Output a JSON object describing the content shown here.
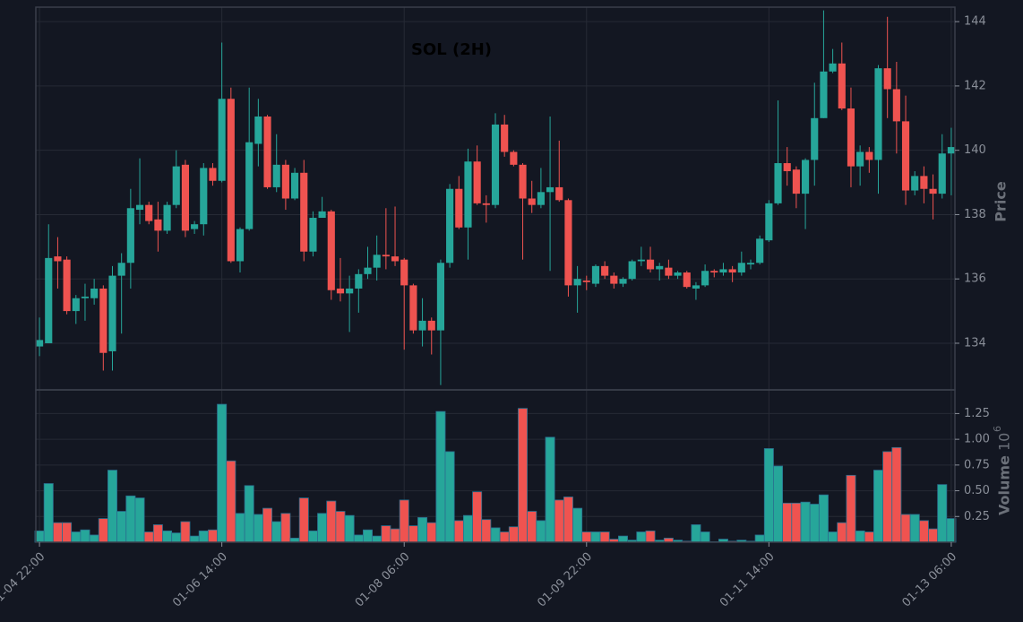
{
  "chart_data": {
    "type": "candlestick",
    "title": "SOL (2H)",
    "ylabel": "Price",
    "volume_label": "Volume",
    "volume_scale": {
      "base": "10",
      "exponent": "6"
    },
    "up_color": "#26a69a",
    "down_color": "#ef5350",
    "grid": true,
    "xlim": [
      -0.4,
      100.4
    ],
    "xticks": [
      {
        "value": 0,
        "label": "01-04 22:00"
      },
      {
        "value": 20,
        "label": "01-06 14:00"
      },
      {
        "value": 40,
        "label": "01-08 06:00"
      },
      {
        "value": 60,
        "label": "01-09 22:00"
      },
      {
        "value": 80,
        "label": "01-11 14:00"
      },
      {
        "value": 100,
        "label": "01-13 06:00"
      }
    ],
    "ylim": [
      132.55,
      144.45
    ],
    "yticks": [
      134,
      136,
      138,
      140,
      142,
      144
    ],
    "volume_ylim": [
      0,
      1.48
    ],
    "volume_yticks": [
      0.25,
      {
        "value": 0.5,
        "label": "0.50"
      },
      0.75,
      {
        "value": 1.0,
        "label": "1.00"
      },
      1.25
    ],
    "open": [
      133.9,
      134.0,
      136.7,
      136.6,
      135.0,
      135.4,
      135.4,
      135.7,
      133.75,
      136.1,
      136.5,
      138.15,
      138.3,
      137.85,
      137.5,
      138.3,
      139.55,
      137.55,
      137.7,
      139.45,
      139.05,
      141.6,
      136.55,
      137.55,
      140.2,
      141.05,
      138.85,
      139.55,
      138.5,
      139.3,
      136.85,
      137.9,
      138.1,
      135.7,
      135.55,
      135.7,
      136.15,
      136.35,
      136.75,
      136.7,
      136.6,
      135.8,
      134.4,
      134.7,
      134.4,
      136.5,
      138.8,
      137.6,
      139.65,
      138.35,
      138.3,
      140.8,
      139.95,
      139.55,
      138.5,
      138.3,
      138.7,
      138.85,
      138.45,
      135.8,
      135.95,
      135.85,
      136.4,
      136.1,
      135.85,
      136.0,
      136.55,
      136.6,
      136.3,
      136.35,
      136.1,
      136.2,
      135.7,
      135.8,
      136.25,
      136.2,
      136.3,
      136.2,
      136.45,
      136.5,
      137.2,
      138.35,
      139.6,
      139.4,
      138.65,
      139.7,
      141.0,
      142.45,
      142.7,
      141.3,
      139.5,
      139.95,
      139.7,
      142.55,
      141.9,
      140.9,
      138.75,
      139.2,
      138.8,
      138.65,
      139.9
    ],
    "close": [
      134.1,
      136.65,
      136.55,
      135.0,
      135.4,
      135.45,
      135.7,
      133.7,
      136.1,
      136.5,
      138.2,
      138.3,
      137.8,
      137.5,
      138.3,
      139.5,
      137.5,
      137.7,
      139.45,
      139.05,
      141.6,
      136.55,
      137.55,
      140.25,
      141.05,
      138.85,
      139.55,
      138.5,
      139.3,
      136.85,
      137.9,
      138.1,
      135.65,
      135.55,
      135.7,
      136.15,
      136.35,
      136.75,
      136.7,
      136.55,
      135.8,
      134.4,
      134.7,
      134.4,
      136.5,
      138.8,
      137.6,
      139.65,
      138.35,
      138.3,
      140.8,
      139.95,
      139.55,
      138.5,
      138.3,
      138.7,
      138.85,
      138.45,
      135.8,
      136.0,
      135.9,
      136.4,
      136.1,
      135.85,
      136.0,
      136.55,
      136.6,
      136.3,
      136.4,
      136.1,
      136.2,
      135.75,
      135.8,
      136.25,
      136.2,
      136.3,
      136.2,
      136.5,
      136.5,
      137.25,
      138.35,
      139.6,
      139.35,
      138.65,
      139.7,
      141.0,
      142.45,
      142.7,
      141.3,
      139.5,
      139.95,
      139.7,
      142.55,
      141.9,
      140.9,
      138.75,
      139.2,
      138.8,
      138.65,
      139.9,
      140.1
    ],
    "high": [
      134.8,
      137.7,
      137.3,
      136.7,
      135.5,
      135.85,
      136.0,
      135.8,
      136.4,
      136.8,
      138.8,
      139.75,
      138.4,
      138.4,
      138.4,
      140.0,
      139.7,
      137.8,
      139.6,
      139.6,
      143.35,
      141.95,
      137.6,
      141.95,
      141.6,
      141.1,
      140.5,
      139.7,
      139.45,
      139.7,
      138.1,
      138.55,
      138.15,
      136.65,
      136.1,
      136.3,
      137.0,
      137.35,
      138.2,
      138.25,
      136.65,
      135.85,
      135.4,
      134.8,
      136.6,
      138.95,
      139.2,
      140.05,
      140.15,
      138.6,
      141.15,
      141.1,
      140.0,
      139.6,
      139.05,
      139.45,
      141.05,
      140.3,
      138.5,
      136.4,
      136.1,
      136.45,
      136.55,
      136.2,
      136.05,
      136.6,
      137.0,
      137.0,
      136.5,
      136.6,
      136.25,
      136.25,
      135.9,
      136.45,
      136.3,
      136.5,
      136.4,
      136.85,
      136.6,
      137.35,
      138.45,
      141.55,
      140.1,
      139.5,
      139.75,
      142.1,
      144.35,
      143.15,
      143.35,
      141.95,
      140.15,
      140.1,
      142.65,
      144.15,
      142.75,
      141.7,
      139.35,
      139.5,
      139.25,
      140.5,
      140.7
    ],
    "low": [
      133.6,
      134.0,
      135.7,
      134.9,
      134.6,
      134.7,
      135.2,
      133.15,
      133.15,
      134.3,
      135.7,
      137.7,
      137.7,
      136.85,
      137.4,
      138.2,
      137.3,
      137.4,
      137.35,
      138.9,
      139.0,
      136.5,
      136.2,
      137.5,
      139.5,
      138.8,
      138.7,
      138.15,
      138.45,
      136.55,
      136.7,
      138.0,
      135.35,
      135.3,
      134.35,
      134.95,
      136.0,
      135.95,
      136.3,
      136.4,
      133.8,
      134.3,
      133.9,
      133.65,
      132.7,
      136.35,
      137.55,
      136.6,
      138.3,
      137.75,
      138.2,
      139.8,
      139.5,
      136.6,
      138.05,
      138.2,
      136.25,
      138.4,
      135.45,
      134.95,
      135.65,
      135.75,
      136.0,
      135.7,
      135.75,
      135.95,
      136.4,
      136.2,
      135.95,
      136.0,
      136.0,
      135.7,
      135.35,
      135.75,
      136.05,
      136.1,
      135.9,
      136.1,
      136.3,
      136.45,
      137.15,
      138.3,
      138.9,
      138.2,
      137.55,
      138.9,
      141.0,
      142.4,
      141.25,
      138.85,
      138.9,
      139.3,
      138.65,
      141.0,
      139.9,
      138.3,
      138.6,
      138.35,
      137.85,
      138.5,
      138.6
    ],
    "volume": [
      0.11,
      0.57,
      0.19,
      0.19,
      0.1,
      0.12,
      0.07,
      0.23,
      0.7,
      0.3,
      0.45,
      0.43,
      0.1,
      0.17,
      0.11,
      0.09,
      0.2,
      0.06,
      0.11,
      0.12,
      1.34,
      0.79,
      0.28,
      0.55,
      0.27,
      0.33,
      0.2,
      0.28,
      0.04,
      0.43,
      0.11,
      0.28,
      0.4,
      0.3,
      0.26,
      0.07,
      0.12,
      0.06,
      0.16,
      0.13,
      0.41,
      0.16,
      0.24,
      0.19,
      1.27,
      0.88,
      0.21,
      0.26,
      0.49,
      0.22,
      0.14,
      0.1,
      0.15,
      1.3,
      0.3,
      0.21,
      1.02,
      0.41,
      0.44,
      0.33,
      0.1,
      0.1,
      0.1,
      0.03,
      0.06,
      0.02,
      0.1,
      0.11,
      0.02,
      0.04,
      0.02,
      0.01,
      0.17,
      0.1,
      0.005,
      0.03,
      0.01,
      0.02,
      0.01,
      0.07,
      0.91,
      0.74,
      0.38,
      0.38,
      0.39,
      0.37,
      0.46,
      0.1,
      0.19,
      0.65,
      0.11,
      0.1,
      0.7,
      0.88,
      0.92,
      0.27,
      0.27,
      0.21,
      0.13,
      0.56,
      0.23
    ]
  }
}
